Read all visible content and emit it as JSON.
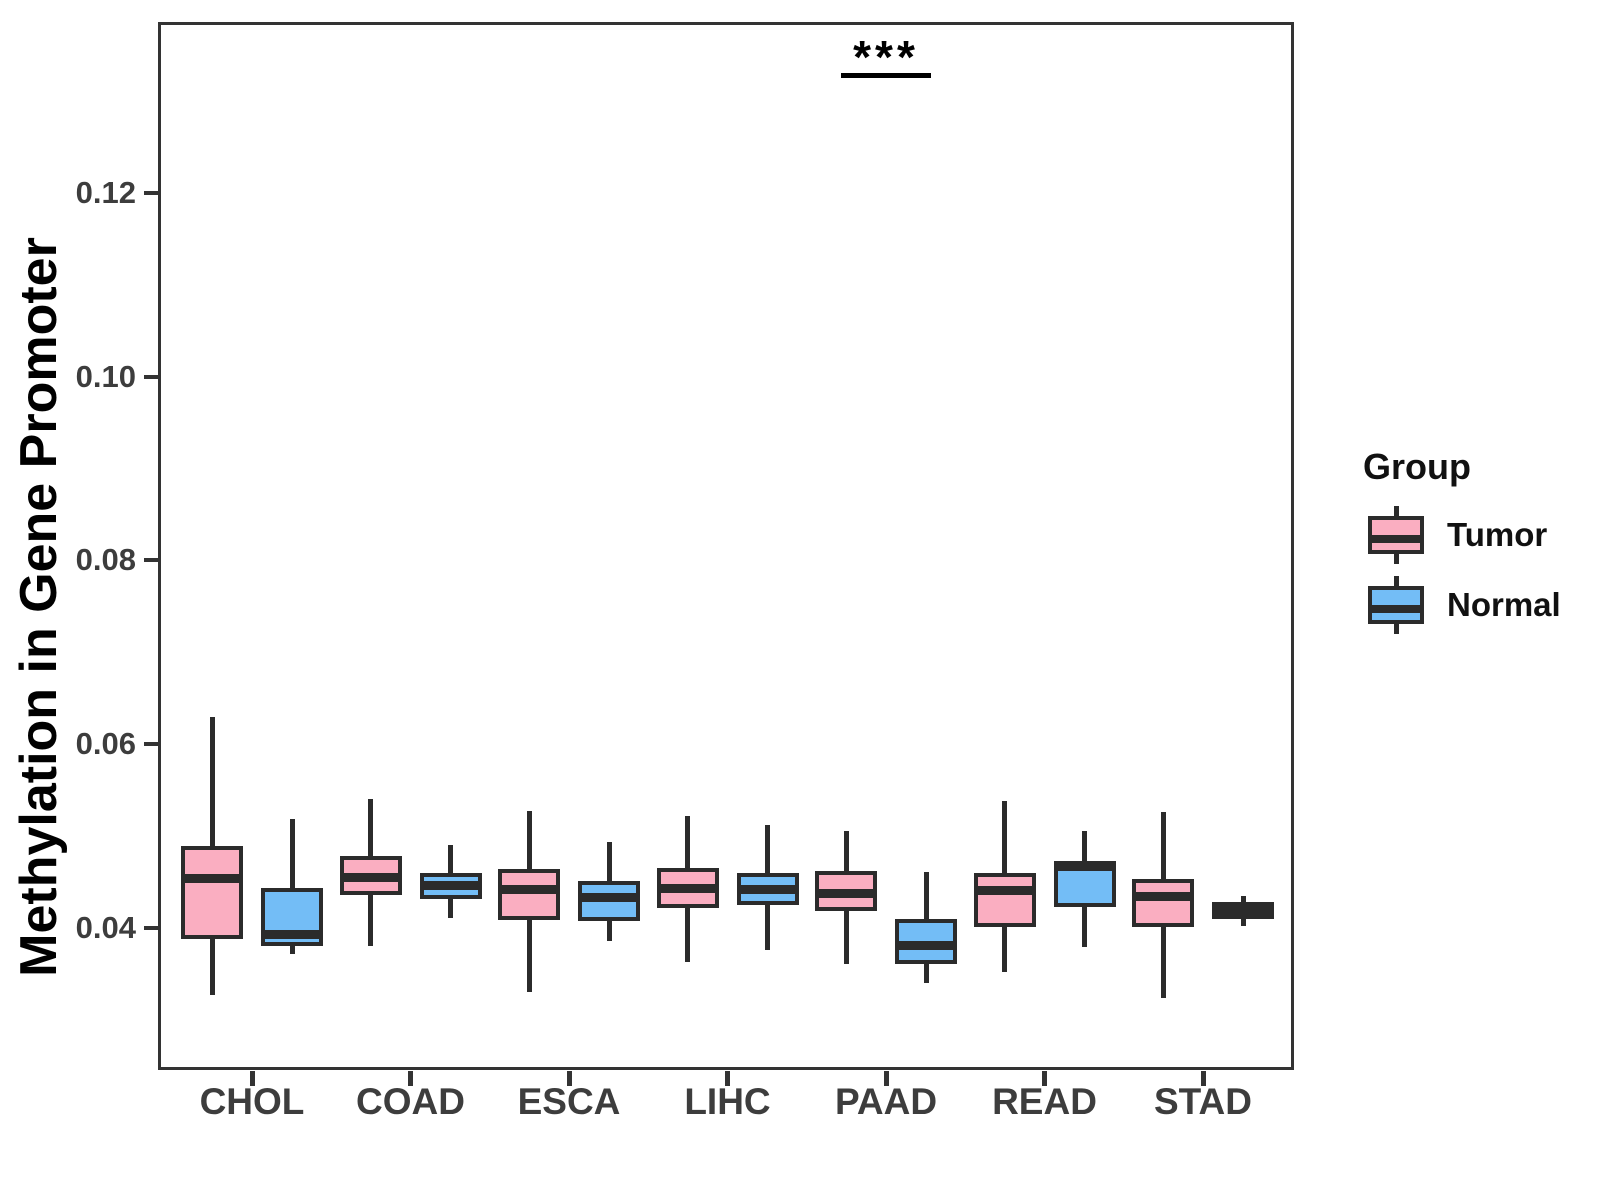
{
  "chart_data": {
    "type": "boxplot",
    "title": "",
    "xlabel": "",
    "ylabel": "Methylation in Gene Promoter",
    "categories": [
      "CHOL",
      "COAD",
      "ESCA",
      "LIHC",
      "PAAD",
      "READ",
      "STAD"
    ],
    "y_ticks": [
      {
        "label": "0.04",
        "value": 0.04
      },
      {
        "label": "0.06",
        "value": 0.06
      },
      {
        "label": "0.08",
        "value": 0.08
      },
      {
        "label": "0.10",
        "value": 0.1
      },
      {
        "label": "0.12",
        "value": 0.12
      }
    ],
    "ylim": [
      0.0245,
      0.1386
    ],
    "grid": false,
    "legend": {
      "title": "Group",
      "position": "right"
    },
    "groups": [
      {
        "name": "Tumor",
        "fill": "#FAAEC1"
      },
      {
        "name": "Normal",
        "fill": "#73BDF6"
      }
    ],
    "series": [
      {
        "name": "Tumor",
        "boxes": [
          {
            "category": "CHOL",
            "whisker_low": 0.0327,
            "q1": 0.0388,
            "median": 0.0454,
            "q3": 0.0489,
            "whisker_high": 0.0629
          },
          {
            "category": "COAD",
            "whisker_low": 0.038,
            "q1": 0.0436,
            "median": 0.0455,
            "q3": 0.0478,
            "whisker_high": 0.054
          },
          {
            "category": "ESCA",
            "whisker_low": 0.033,
            "q1": 0.0408,
            "median": 0.0441,
            "q3": 0.0464,
            "whisker_high": 0.0527
          },
          {
            "category": "LIHC",
            "whisker_low": 0.0363,
            "q1": 0.0421,
            "median": 0.0443,
            "q3": 0.0465,
            "whisker_high": 0.0521
          },
          {
            "category": "PAAD",
            "whisker_low": 0.036,
            "q1": 0.0418,
            "median": 0.0437,
            "q3": 0.0462,
            "whisker_high": 0.0505
          },
          {
            "category": "READ",
            "whisker_low": 0.0352,
            "q1": 0.0401,
            "median": 0.044,
            "q3": 0.046,
            "whisker_high": 0.0538
          },
          {
            "category": "STAD",
            "whisker_low": 0.0323,
            "q1": 0.0401,
            "median": 0.0434,
            "q3": 0.0453,
            "whisker_high": 0.0526
          }
        ]
      },
      {
        "name": "Normal",
        "boxes": [
          {
            "category": "CHOL",
            "whisker_low": 0.0371,
            "q1": 0.038,
            "median": 0.0392,
            "q3": 0.0443,
            "whisker_high": 0.0518
          },
          {
            "category": "COAD",
            "whisker_low": 0.0411,
            "q1": 0.0431,
            "median": 0.0446,
            "q3": 0.046,
            "whisker_high": 0.049
          },
          {
            "category": "ESCA",
            "whisker_low": 0.0385,
            "q1": 0.0407,
            "median": 0.0433,
            "q3": 0.0451,
            "whisker_high": 0.0493
          },
          {
            "category": "LIHC",
            "whisker_low": 0.0376,
            "q1": 0.0425,
            "median": 0.0441,
            "q3": 0.046,
            "whisker_high": 0.0512
          },
          {
            "category": "PAAD",
            "whisker_low": 0.034,
            "q1": 0.036,
            "median": 0.0381,
            "q3": 0.0409,
            "whisker_high": 0.0461
          },
          {
            "category": "READ",
            "whisker_low": 0.0379,
            "q1": 0.0423,
            "median": 0.0467,
            "q3": 0.0473,
            "whisker_high": 0.0505
          },
          {
            "category": "STAD",
            "whisker_low": 0.0402,
            "q1": 0.0409,
            "median": 0.0419,
            "q3": 0.0428,
            "whisker_high": 0.0434
          }
        ]
      }
    ],
    "significance": {
      "label": "***",
      "category": "PAAD"
    }
  },
  "colors": {
    "tumor_fill": "#FAAEC1",
    "normal_fill": "#73BDF6",
    "box_border": "#2B2B2B",
    "panel_border": "#333333",
    "tick_text": "#3D3D3D",
    "title_text": "#000000"
  }
}
